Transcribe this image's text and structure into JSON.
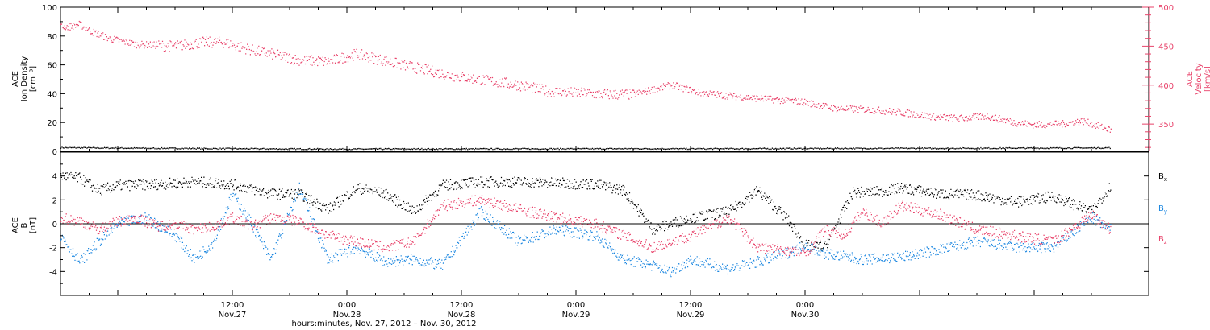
{
  "colors": {
    "density": "#000000",
    "velocity": "#e8426a",
    "bx": "#000000",
    "by": "#1a86e0",
    "bz": "#e8426a",
    "frame": "#000000"
  },
  "chart_data": [
    {
      "type": "scatter",
      "instrument": "ACE",
      "x_unit": "hours since Nov 26, 2012 18:00 (UT)",
      "xlim": [
        0,
        114
      ],
      "left_axis": {
        "label_lines": [
          "ACE",
          "Ion Density",
          "[cm⁻³]"
        ],
        "ylim": [
          0,
          100
        ],
        "ticks": [
          "0",
          "20",
          "40",
          "60",
          "80",
          "100"
        ],
        "tick_values": [
          0,
          20,
          40,
          60,
          80,
          100
        ]
      },
      "right_axis": {
        "label_lines": [
          "ACE",
          "Velocity",
          "[km/s]"
        ],
        "ylim": [
          315,
          500
        ],
        "ticks": [
          "350",
          "400",
          "450",
          "500"
        ],
        "tick_values": [
          350,
          400,
          450,
          500
        ]
      },
      "series": [
        {
          "name": "Ion Density",
          "axis": "left",
          "color_key": "density",
          "x": [
            0,
            6,
            12,
            18,
            24,
            30,
            36,
            42,
            48,
            54,
            60,
            66,
            72,
            78,
            84,
            90,
            96,
            102,
            108,
            110
          ],
          "y": [
            2.5,
            2.2,
            2.0,
            1.8,
            1.6,
            1.5,
            1.6,
            1.6,
            1.7,
            1.7,
            1.8,
            1.7,
            1.8,
            1.9,
            2.0,
            2.0,
            2.1,
            2.2,
            2.3,
            2.4
          ]
        },
        {
          "name": "Velocity",
          "axis": "right",
          "color_key": "velocity",
          "x": [
            0,
            1,
            2,
            3,
            5,
            8,
            12,
            15,
            17,
            20,
            22,
            25,
            28,
            31,
            35,
            38,
            41,
            45,
            48,
            51,
            54,
            57,
            60,
            64,
            67,
            71,
            74,
            78,
            81,
            85,
            88,
            91,
            94,
            97,
            100,
            102,
            105,
            107,
            110
          ],
          "y": [
            475,
            475,
            478,
            470,
            460,
            452,
            450,
            455,
            455,
            445,
            440,
            432,
            430,
            440,
            428,
            420,
            412,
            405,
            400,
            392,
            390,
            388,
            388,
            400,
            390,
            385,
            382,
            378,
            370,
            368,
            365,
            360,
            357,
            360,
            352,
            349,
            350,
            354,
            342
          ]
        }
      ]
    },
    {
      "type": "scatter",
      "xlim": [
        0,
        114
      ],
      "left_axis": {
        "label_lines": [
          "ACE",
          "B",
          "[nT]"
        ],
        "ylim": [
          -6,
          6
        ],
        "ticks": [
          "-4",
          "-2",
          "0",
          "2",
          "4"
        ],
        "tick_values": [
          -4,
          -2,
          0,
          2,
          4
        ]
      },
      "reference_line": 0,
      "series": [
        {
          "name": "Bx",
          "label_main": "B",
          "label_sub": "x",
          "color_key": "bx",
          "x": [
            0,
            2,
            4,
            6,
            10,
            14,
            18,
            22,
            25,
            28,
            31,
            34,
            37,
            40,
            44,
            48,
            52,
            56,
            59,
            62,
            66,
            70,
            73,
            76,
            78,
            80,
            83,
            86,
            88,
            92,
            96,
            100,
            104,
            108,
            110
          ],
          "y": [
            4.0,
            3.8,
            2.8,
            3.2,
            3.3,
            3.5,
            3.3,
            2.5,
            2.5,
            1.2,
            3.0,
            2.5,
            1.0,
            3.2,
            3.5,
            3.5,
            3.4,
            3.3,
            2.8,
            -0.5,
            0.5,
            1.0,
            2.8,
            0.5,
            -1.8,
            -2.0,
            2.6,
            2.7,
            3.0,
            2.5,
            2.4,
            1.8,
            2.3,
            1.0,
            3.2
          ]
        },
        {
          "name": "By",
          "label_main": "B",
          "label_sub": "y",
          "color_key": "by",
          "x": [
            0,
            2,
            4,
            6,
            9,
            12,
            14,
            16,
            18,
            20,
            22,
            25,
            28,
            31,
            34,
            37,
            40,
            44,
            48,
            52,
            56,
            59,
            62,
            64,
            66,
            70,
            73,
            76,
            78,
            80,
            84,
            88,
            92,
            96,
            100,
            104,
            108,
            110
          ],
          "y": [
            -1.0,
            -3.2,
            -1.5,
            0.0,
            0.5,
            -1.0,
            -3.0,
            -1.5,
            2.5,
            0.0,
            -3.0,
            3.0,
            -3.0,
            -2.0,
            -3.2,
            -3.0,
            -3.5,
            1.0,
            -1.5,
            -0.5,
            -1.0,
            -3.0,
            -3.5,
            -4.0,
            -3.0,
            -3.8,
            -3.2,
            -2.5,
            -1.8,
            -2.5,
            -3.0,
            -2.8,
            -2.2,
            -1.5,
            -2.0,
            -2.0,
            0.5,
            -0.5
          ]
        },
        {
          "name": "Bz",
          "label_main": "B",
          "label_sub": "z",
          "color_key": "bz",
          "x": [
            0,
            2,
            4,
            6,
            8,
            10,
            12,
            14,
            16,
            18,
            20,
            22,
            25,
            28,
            31,
            34,
            37,
            40,
            44,
            48,
            52,
            56,
            59,
            62,
            66,
            70,
            73,
            76,
            78,
            80,
            82,
            84,
            86,
            88,
            92,
            96,
            100,
            104,
            108,
            110
          ],
          "y": [
            0.5,
            0.2,
            -0.5,
            0.2,
            0.5,
            -0.2,
            0.0,
            -0.5,
            -0.2,
            0.5,
            -0.2,
            0.5,
            0.2,
            -1.0,
            -1.5,
            -2.0,
            -1.5,
            1.5,
            2.0,
            1.2,
            0.5,
            0.0,
            -1.0,
            -2.0,
            -1.0,
            0.5,
            -2.0,
            -2.2,
            -2.5,
            -0.5,
            -1.0,
            1.0,
            0.0,
            1.5,
            0.8,
            -0.5,
            -1.0,
            -1.5,
            0.8,
            -0.5
          ]
        }
      ]
    }
  ],
  "x_axis": {
    "ticks": [
      {
        "time": "12:00",
        "date": "Nov.27",
        "hours": 18
      },
      {
        "time": "0:00",
        "date": "Nov.28",
        "hours": 30
      },
      {
        "time": "12:00",
        "date": "Nov.28",
        "hours": 42
      },
      {
        "time": "0:00",
        "date": "Nov.29",
        "hours": 54
      },
      {
        "time": "12:00",
        "date": "Nov.29",
        "hours": 66
      },
      {
        "time": "0:00",
        "date": "Nov.30",
        "hours": 78
      }
    ],
    "title": "hours:minutes, Nov. 27, 2012 – Nov. 30, 2012"
  }
}
